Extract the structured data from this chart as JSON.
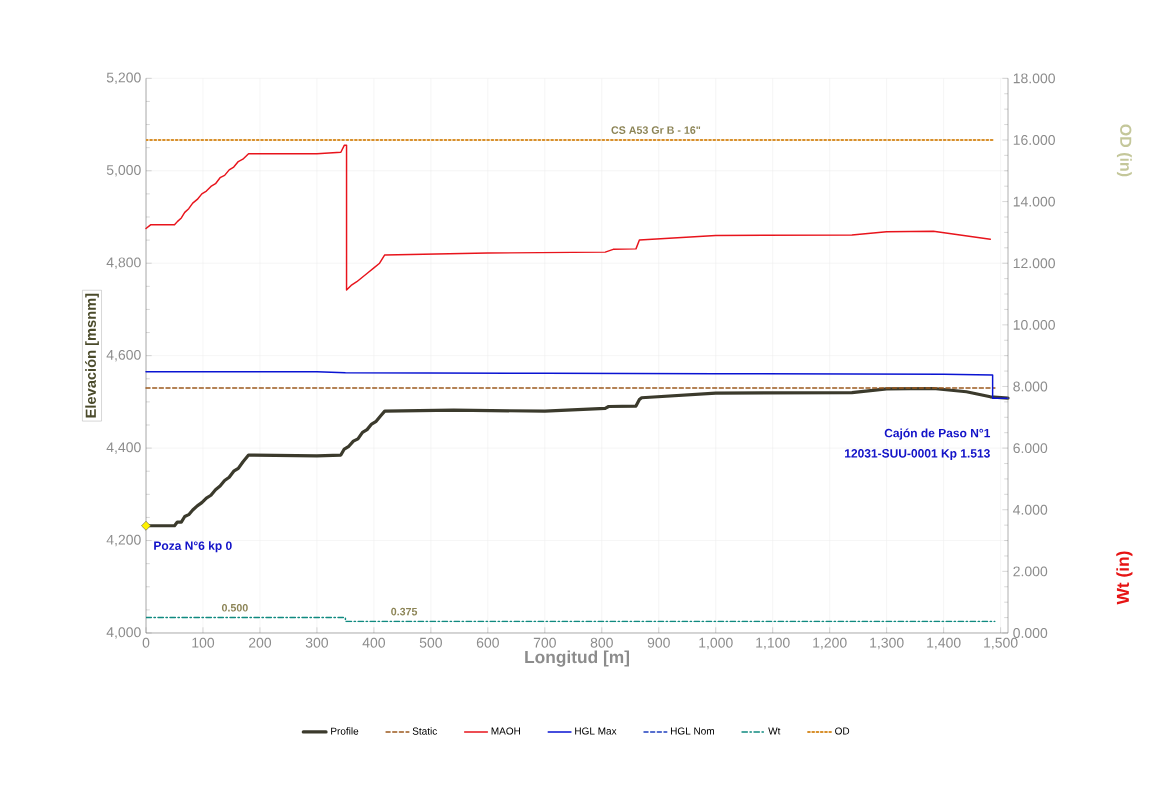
{
  "chart_data": {
    "type": "line",
    "xlabel": "Longitud [m]",
    "ylabel": "Elevación [msnm]",
    "y2label": "OD (in)",
    "xlim": [
      0,
      1513
    ],
    "ylim": [
      4000,
      5200
    ],
    "y2lim": [
      0,
      18
    ],
    "xticks": [
      0,
      100,
      200,
      300,
      400,
      500,
      600,
      700,
      800,
      900,
      {
        "value": 1000,
        "label": "1,000"
      },
      {
        "value": 1100,
        "label": "1,100"
      },
      {
        "value": 1200,
        "label": "1,200"
      },
      {
        "value": 1300,
        "label": "1,300"
      },
      {
        "value": 1400,
        "label": "1,400"
      },
      {
        "value": 1500,
        "label": "1,500"
      }
    ],
    "yticks": [
      {
        "value": 4000,
        "label": "4,000"
      },
      {
        "value": 4200,
        "label": "4,200"
      },
      {
        "value": 4400,
        "label": "4,400"
      },
      {
        "value": 4600,
        "label": "4,600"
      },
      {
        "value": 4800,
        "label": "4,800"
      },
      {
        "value": 5000,
        "label": "5,000"
      },
      {
        "value": 5200,
        "label": "5,200"
      }
    ],
    "y2ticks": [
      {
        "value": 0,
        "label": "0.000"
      },
      {
        "value": 2,
        "label": "2.000"
      },
      {
        "value": 4,
        "label": "4.000"
      },
      {
        "value": 6,
        "label": "6.000"
      },
      {
        "value": 8,
        "label": "8.000"
      },
      {
        "value": 10,
        "label": "10.000"
      },
      {
        "value": 12,
        "label": "12.000"
      },
      {
        "value": 14,
        "label": "14.000"
      },
      {
        "value": 16,
        "label": "16.000"
      },
      {
        "value": 18,
        "label": "18.000"
      }
    ],
    "grid": true,
    "legend": "bottom",
    "marker": "none",
    "series": [
      {
        "name": "Profile",
        "color": "#3b3a2c",
        "line_style": "solid",
        "x": [
          0,
          50,
          55,
          62,
          68,
          75,
          82,
          90,
          98,
          106,
          114,
          122,
          130,
          138,
          146,
          154,
          162,
          170,
          180,
          300,
          342,
          348,
          356,
          364,
          372,
          380,
          388,
          396,
          404,
          412,
          419,
          540,
          700,
          806,
          812,
          860,
          866,
          870,
          1000,
          1239,
          1300,
          1382,
          1440,
          1482,
          1513
        ],
        "values": [
          4232,
          4232,
          4240,
          4240,
          4252,
          4256,
          4266,
          4275,
          4282,
          4292,
          4298,
          4310,
          4318,
          4330,
          4337,
          4350,
          4356,
          4370,
          4385,
          4383,
          4385,
          4398,
          4404,
          4415,
          4420,
          4434,
          4440,
          4452,
          4458,
          4470,
          4480,
          4482,
          4480,
          4486,
          4490,
          4491,
          4505,
          4509,
          4519,
          4520,
          4528,
          4529,
          4522,
          4511,
          4508
        ]
      },
      {
        "name": "Static",
        "color": "#9c5a1e",
        "line_style": "dashed",
        "x": [
          0,
          1490
        ],
        "values": [
          4530,
          4530
        ]
      },
      {
        "name": "MAOH",
        "color": "#e8141c",
        "line_style": "solid",
        "x": [
          0,
          8,
          50,
          55,
          62,
          68,
          75,
          82,
          90,
          98,
          106,
          114,
          122,
          130,
          138,
          146,
          154,
          162,
          170,
          180,
          300,
          342,
          348,
          352,
          352,
          360,
          370,
          380,
          390,
          400,
          410,
          419,
          600,
          806,
          820,
          860,
          866,
          1000,
          1239,
          1300,
          1382,
          1482
        ],
        "values": [
          4875,
          4883,
          4883,
          4890,
          4898,
          4910,
          4918,
          4930,
          4938,
          4950,
          4956,
          4966,
          4972,
          4985,
          4990,
          5002,
          5008,
          5020,
          5025,
          5037,
          5037,
          5040,
          5055,
          5055,
          4742,
          4752,
          4760,
          4770,
          4780,
          4790,
          4800,
          4818,
          4822,
          4824,
          4830,
          4831,
          4850,
          4860,
          4861,
          4868,
          4869,
          4852
        ]
      },
      {
        "name": "HGL Max",
        "color": "#0a14d2",
        "line_style": "solid",
        "x": [
          0,
          300,
          350,
          700,
          1000,
          1400,
          1486,
          1486,
          1513
        ],
        "values": [
          4565,
          4565,
          4563,
          4562,
          4561,
          4560,
          4558,
          4508,
          4508
        ]
      },
      {
        "name": "HGL Nom",
        "color": "#1f3fbf",
        "line_style": "dashed"
      },
      {
        "name": "Wt",
        "color": "#108a80",
        "line_style": "dashdot",
        "axis": "y2",
        "x": [
          0,
          156,
          350,
          350,
          453,
          1490
        ],
        "values": [
          0.5,
          0.5,
          0.5,
          0.375,
          0.375,
          0.375
        ],
        "value_labels": [
          null,
          "0.500",
          null,
          null,
          "0.375",
          null
        ]
      },
      {
        "name": "OD",
        "color": "#d8902c",
        "line_style": "dotted",
        "axis": "y2",
        "x": [
          0,
          895,
          1490
        ],
        "values": [
          16,
          16,
          16
        ],
        "value_labels": [
          null,
          "CS A53 Gr B - 16\"",
          null
        ]
      }
    ],
    "annotations": [
      {
        "text": "Poza N°6 kp 0",
        "x": 0,
        "y": 4232
      },
      "Cajón de Paso N°1",
      "12031-SUU-0001 Kp 1.513",
      "Wt (in)"
    ]
  }
}
